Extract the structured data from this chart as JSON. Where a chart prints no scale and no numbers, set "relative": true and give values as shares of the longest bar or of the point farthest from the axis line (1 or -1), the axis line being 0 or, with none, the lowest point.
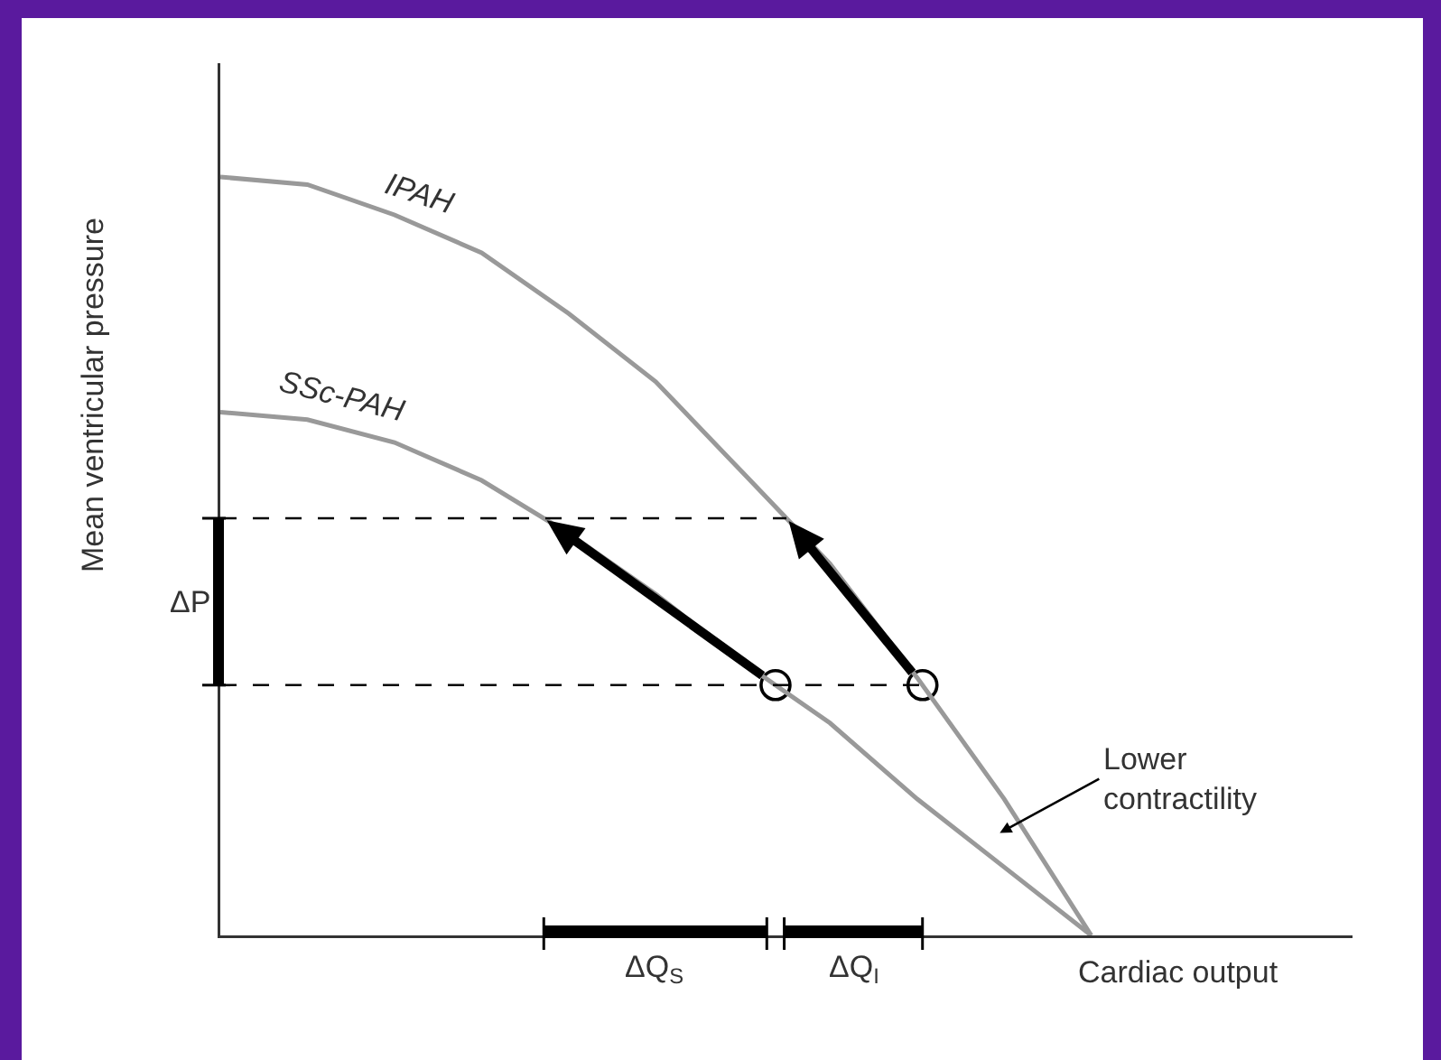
{
  "chart_data": {
    "type": "line",
    "relative": true,
    "xlabel": "Cardiac output",
    "ylabel": "Mean ventricular pressure",
    "categories": [
      null,
      null,
      null,
      null,
      null,
      null,
      null,
      null,
      null,
      null,
      null,
      null,
      null,
      null
    ],
    "series": [
      {
        "name": "IPAH",
        "color": "#999999",
        "values": [
          1.0,
          0.99,
          0.95,
          0.9,
          0.82,
          0.73,
          0.61,
          0.49,
          0.34,
          0.18,
          0,
          null,
          null,
          null
        ]
      },
      {
        "name": "SSc-PAH",
        "color": "#999999",
        "values": [
          0.69,
          0.68,
          0.65,
          0.6,
          0.53,
          0.45,
          0.36,
          0.28,
          0.18,
          0.09,
          0,
          null,
          null,
          null
        ]
      }
    ],
    "ref_lines": [
      {
        "axis": "y",
        "value": 0.55,
        "color": "#000000",
        "line_style": "dashed"
      },
      {
        "axis": "y",
        "value": 0.33,
        "color": "#000000",
        "line_style": "dashed"
      }
    ],
    "annotations": [
      "ΔP",
      "ΔQ$_{S}$",
      "ΔQ$_{I}$",
      "Lower contractility"
    ],
    "marker": "none",
    "line_style": "solid",
    "grid": false,
    "legend": false
  }
}
